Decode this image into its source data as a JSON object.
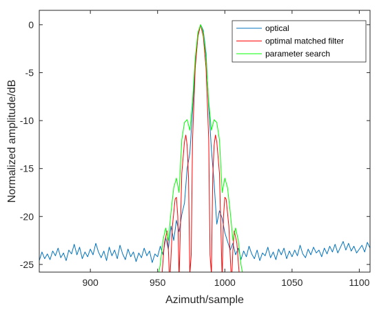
{
  "chart_data": {
    "type": "line",
    "title": "",
    "xlabel": "Azimuth/sample",
    "ylabel": "Normalized amplitude/dB",
    "xlim": [
      862,
      1108
    ],
    "ylim": [
      -25.8,
      1.5
    ],
    "grid": false,
    "legend_position": "top-right",
    "x_ticks": [
      900,
      950,
      1000,
      1050,
      1100
    ],
    "y_ticks": [
      0,
      -5,
      -10,
      -15,
      -20,
      -25
    ],
    "series": [
      {
        "name": "optical",
        "color": "#0072BD",
        "points": [
          [
            862,
            -24.6
          ],
          [
            864,
            -23.7
          ],
          [
            866,
            -24.4
          ],
          [
            868,
            -23.9
          ],
          [
            870,
            -24.5
          ],
          [
            872,
            -23.6
          ],
          [
            874,
            -24.1
          ],
          [
            876,
            -23.3
          ],
          [
            878,
            -24.3
          ],
          [
            880,
            -23.8
          ],
          [
            882,
            -24.6
          ],
          [
            884,
            -23.5
          ],
          [
            886,
            -23.9
          ],
          [
            888,
            -22.9
          ],
          [
            890,
            -24.0
          ],
          [
            892,
            -23.2
          ],
          [
            894,
            -24.4
          ],
          [
            896,
            -23.7
          ],
          [
            898,
            -24.2
          ],
          [
            900,
            -23.4
          ],
          [
            902,
            -24.0
          ],
          [
            904,
            -22.8
          ],
          [
            906,
            -23.7
          ],
          [
            908,
            -24.3
          ],
          [
            910,
            -23.6
          ],
          [
            912,
            -24.6
          ],
          [
            914,
            -23.2
          ],
          [
            916,
            -24.1
          ],
          [
            918,
            -23.5
          ],
          [
            920,
            -24.4
          ],
          [
            922,
            -23.0
          ],
          [
            924,
            -23.9
          ],
          [
            926,
            -24.5
          ],
          [
            928,
            -23.4
          ],
          [
            930,
            -24.2
          ],
          [
            932,
            -23.7
          ],
          [
            934,
            -24.7
          ],
          [
            936,
            -23.8
          ],
          [
            938,
            -24.3
          ],
          [
            940,
            -23.3
          ],
          [
            942,
            -24.1
          ],
          [
            944,
            -23.6
          ],
          [
            946,
            -24.8
          ],
          [
            948,
            -23.9
          ],
          [
            950,
            -24.2
          ],
          [
            952,
            -23.1
          ],
          [
            954,
            -24.0
          ],
          [
            956,
            -22.2
          ],
          [
            958,
            -23.4
          ],
          [
            960,
            -21.0
          ],
          [
            962,
            -22.5
          ],
          [
            964,
            -20.4
          ],
          [
            966,
            -21.6
          ],
          [
            968,
            -19.8
          ],
          [
            970,
            -18.6
          ],
          [
            972,
            -15.0
          ],
          [
            974,
            -13.4
          ],
          [
            976,
            -9.0
          ],
          [
            978,
            -4.2
          ],
          [
            980,
            -1.2
          ],
          [
            982,
            0.0
          ],
          [
            984,
            -0.6
          ],
          [
            986,
            -3.0
          ],
          [
            988,
            -8.5
          ],
          [
            990,
            -13.0
          ],
          [
            992,
            -16.5
          ],
          [
            994,
            -20.8
          ],
          [
            996,
            -19.4
          ],
          [
            998,
            -20.2
          ],
          [
            1000,
            -21.7
          ],
          [
            1002,
            -22.6
          ],
          [
            1004,
            -23.5
          ],
          [
            1006,
            -22.8
          ],
          [
            1008,
            -24.0
          ],
          [
            1010,
            -23.3
          ],
          [
            1012,
            -24.5
          ],
          [
            1014,
            -23.6
          ],
          [
            1016,
            -24.2
          ],
          [
            1018,
            -23.1
          ],
          [
            1020,
            -23.9
          ],
          [
            1022,
            -24.4
          ],
          [
            1024,
            -23.5
          ],
          [
            1026,
            -24.6
          ],
          [
            1028,
            -23.8
          ],
          [
            1030,
            -24.1
          ],
          [
            1032,
            -23.2
          ],
          [
            1034,
            -24.3
          ],
          [
            1036,
            -23.7
          ],
          [
            1038,
            -24.5
          ],
          [
            1040,
            -23.4
          ],
          [
            1042,
            -24.0
          ],
          [
            1044,
            -23.3
          ],
          [
            1046,
            -24.4
          ],
          [
            1048,
            -23.6
          ],
          [
            1050,
            -24.2
          ],
          [
            1052,
            -23.5
          ],
          [
            1054,
            -24.1
          ],
          [
            1056,
            -23.0
          ],
          [
            1058,
            -23.9
          ],
          [
            1060,
            -24.3
          ],
          [
            1062,
            -23.4
          ],
          [
            1064,
            -24.0
          ],
          [
            1066,
            -23.2
          ],
          [
            1068,
            -23.8
          ],
          [
            1070,
            -23.5
          ],
          [
            1072,
            -24.2
          ],
          [
            1074,
            -23.3
          ],
          [
            1076,
            -23.9
          ],
          [
            1078,
            -23.1
          ],
          [
            1080,
            -23.7
          ],
          [
            1082,
            -22.9
          ],
          [
            1084,
            -23.8
          ],
          [
            1086,
            -23.2
          ],
          [
            1088,
            -22.6
          ],
          [
            1090,
            -23.5
          ],
          [
            1092,
            -22.8
          ],
          [
            1094,
            -23.6
          ],
          [
            1096,
            -23.1
          ],
          [
            1098,
            -23.8
          ],
          [
            1100,
            -23.4
          ],
          [
            1102,
            -23.0
          ],
          [
            1104,
            -23.7
          ],
          [
            1106,
            -22.7
          ],
          [
            1108,
            -23.3
          ]
        ]
      },
      {
        "name": "optimal matched filter",
        "color": "#FF0000",
        "points": [
          [
            953,
            -26.5
          ],
          [
            955,
            -22.8
          ],
          [
            957,
            -21.5
          ],
          [
            958,
            -23.5
          ],
          [
            959,
            -27.0
          ],
          [
            961,
            -21.0
          ],
          [
            963,
            -18.2
          ],
          [
            964,
            -18.0
          ],
          [
            965,
            -20.0
          ],
          [
            966,
            -26.5
          ],
          [
            968,
            -15.5
          ],
          [
            970,
            -12.2
          ],
          [
            971,
            -11.5
          ],
          [
            972,
            -12.6
          ],
          [
            973,
            -16.0
          ],
          [
            974,
            -26.0
          ],
          [
            975,
            -24.0
          ],
          [
            976,
            -12.0
          ],
          [
            978,
            -4.5
          ],
          [
            980,
            -1.2
          ],
          [
            982,
            0.0
          ],
          [
            984,
            -1.2
          ],
          [
            986,
            -4.5
          ],
          [
            988,
            -12.0
          ],
          [
            989,
            -24.0
          ],
          [
            990,
            -26.0
          ],
          [
            991,
            -16.0
          ],
          [
            992,
            -12.6
          ],
          [
            993,
            -11.5
          ],
          [
            994,
            -12.2
          ],
          [
            996,
            -15.5
          ],
          [
            998,
            -26.5
          ],
          [
            999,
            -20.0
          ],
          [
            1000,
            -18.0
          ],
          [
            1001,
            -18.2
          ],
          [
            1003,
            -21.0
          ],
          [
            1005,
            -27.0
          ],
          [
            1006,
            -23.5
          ],
          [
            1007,
            -21.5
          ],
          [
            1009,
            -22.8
          ],
          [
            1011,
            -26.5
          ]
        ]
      },
      {
        "name": "parameter search",
        "color": "#00FF00",
        "points": [
          [
            950,
            -26.5
          ],
          [
            952,
            -25.0
          ],
          [
            954,
            -22.5
          ],
          [
            956,
            -21.2
          ],
          [
            958,
            -22.5
          ],
          [
            960,
            -19.5
          ],
          [
            962,
            -17.0
          ],
          [
            964,
            -16.0
          ],
          [
            966,
            -17.5
          ],
          [
            968,
            -12.0
          ],
          [
            970,
            -10.2
          ],
          [
            972,
            -9.9
          ],
          [
            974,
            -11.0
          ],
          [
            976,
            -8.0
          ],
          [
            978,
            -3.5
          ],
          [
            980,
            -0.8
          ],
          [
            982,
            0.0
          ],
          [
            984,
            -0.8
          ],
          [
            986,
            -3.5
          ],
          [
            988,
            -8.0
          ],
          [
            990,
            -11.0
          ],
          [
            992,
            -9.9
          ],
          [
            994,
            -10.2
          ],
          [
            996,
            -12.0
          ],
          [
            998,
            -17.5
          ],
          [
            1000,
            -16.0
          ],
          [
            1002,
            -17.0
          ],
          [
            1004,
            -19.5
          ],
          [
            1006,
            -22.5
          ],
          [
            1008,
            -21.2
          ],
          [
            1010,
            -22.5
          ],
          [
            1012,
            -25.0
          ],
          [
            1014,
            -26.5
          ]
        ]
      }
    ]
  }
}
